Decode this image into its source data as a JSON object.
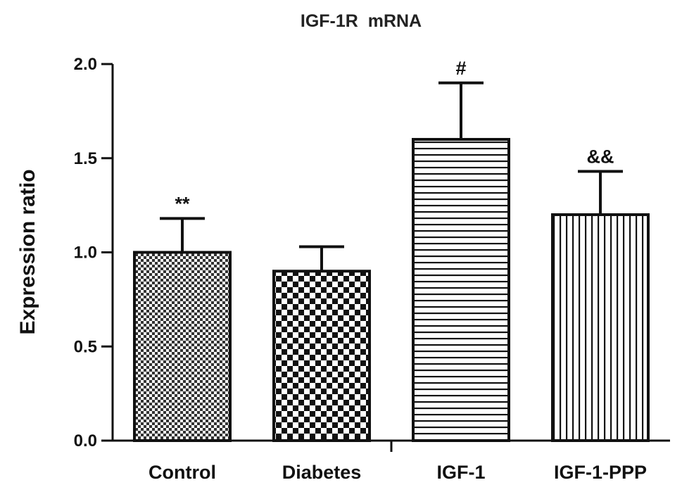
{
  "chart_data": {
    "type": "bar",
    "title": "IGF-1R  mRNA",
    "xlabel": "",
    "ylabel": "Expression ratio",
    "ylim": [
      0,
      2.0
    ],
    "yticks": [
      "0.0",
      "0.5",
      "1.0",
      "1.5",
      "2.0"
    ],
    "categories": [
      "Control",
      "Diabetes",
      "IGF-1",
      "IGF-1-PPP"
    ],
    "values": [
      1.0,
      0.9,
      1.6,
      1.2
    ],
    "errors": [
      0.18,
      0.13,
      0.3,
      0.23
    ],
    "annotations": [
      "**",
      "",
      "#",
      "&&"
    ],
    "fill_patterns": [
      "dense-checker",
      "checker",
      "horizontal-lines",
      "vertical-lines"
    ],
    "colors": {
      "bar_outline": "#111111",
      "pattern": "#111111",
      "background": "#ffffff"
    },
    "grid": false,
    "legend": "none"
  }
}
